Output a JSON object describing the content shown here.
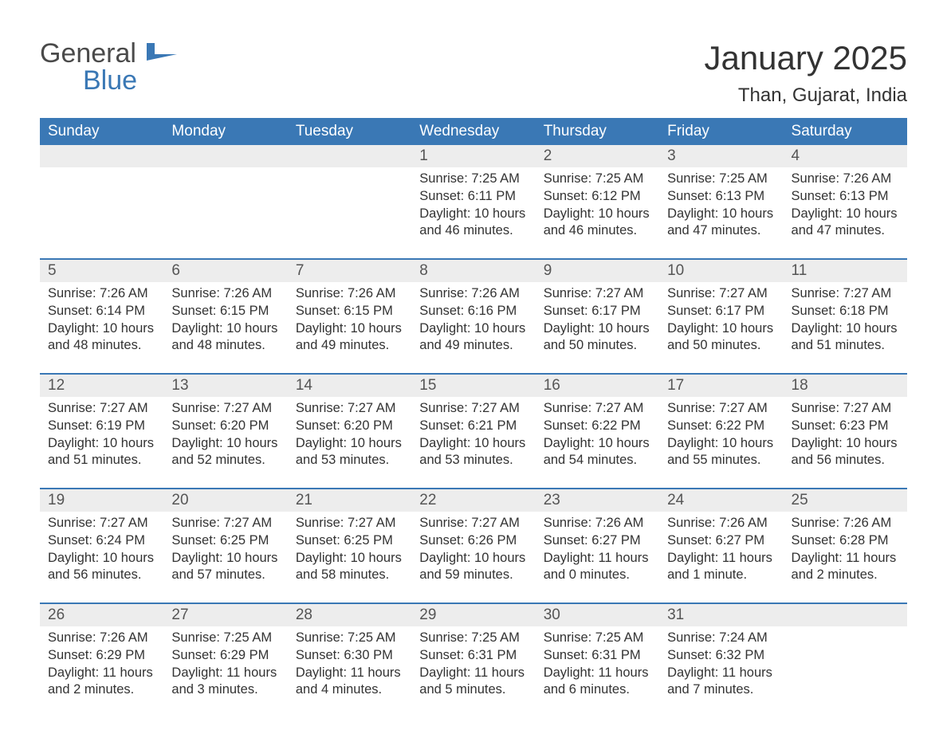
{
  "brand": {
    "general": "General",
    "blue": "Blue",
    "accent": "#3a78b5"
  },
  "title": "January 2025",
  "location": "Than, Gujarat, India",
  "weekdays": [
    "Sunday",
    "Monday",
    "Tuesday",
    "Wednesday",
    "Thursday",
    "Friday",
    "Saturday"
  ],
  "weeks": [
    [
      {
        "n": "",
        "sr": "",
        "ss": "",
        "dl": ""
      },
      {
        "n": "",
        "sr": "",
        "ss": "",
        "dl": ""
      },
      {
        "n": "",
        "sr": "",
        "ss": "",
        "dl": ""
      },
      {
        "n": "1",
        "sr": "Sunrise: 7:25 AM",
        "ss": "Sunset: 6:11 PM",
        "dl": "Daylight: 10 hours and 46 minutes."
      },
      {
        "n": "2",
        "sr": "Sunrise: 7:25 AM",
        "ss": "Sunset: 6:12 PM",
        "dl": "Daylight: 10 hours and 46 minutes."
      },
      {
        "n": "3",
        "sr": "Sunrise: 7:25 AM",
        "ss": "Sunset: 6:13 PM",
        "dl": "Daylight: 10 hours and 47 minutes."
      },
      {
        "n": "4",
        "sr": "Sunrise: 7:26 AM",
        "ss": "Sunset: 6:13 PM",
        "dl": "Daylight: 10 hours and 47 minutes."
      }
    ],
    [
      {
        "n": "5",
        "sr": "Sunrise: 7:26 AM",
        "ss": "Sunset: 6:14 PM",
        "dl": "Daylight: 10 hours and 48 minutes."
      },
      {
        "n": "6",
        "sr": "Sunrise: 7:26 AM",
        "ss": "Sunset: 6:15 PM",
        "dl": "Daylight: 10 hours and 48 minutes."
      },
      {
        "n": "7",
        "sr": "Sunrise: 7:26 AM",
        "ss": "Sunset: 6:15 PM",
        "dl": "Daylight: 10 hours and 49 minutes."
      },
      {
        "n": "8",
        "sr": "Sunrise: 7:26 AM",
        "ss": "Sunset: 6:16 PM",
        "dl": "Daylight: 10 hours and 49 minutes."
      },
      {
        "n": "9",
        "sr": "Sunrise: 7:27 AM",
        "ss": "Sunset: 6:17 PM",
        "dl": "Daylight: 10 hours and 50 minutes."
      },
      {
        "n": "10",
        "sr": "Sunrise: 7:27 AM",
        "ss": "Sunset: 6:17 PM",
        "dl": "Daylight: 10 hours and 50 minutes."
      },
      {
        "n": "11",
        "sr": "Sunrise: 7:27 AM",
        "ss": "Sunset: 6:18 PM",
        "dl": "Daylight: 10 hours and 51 minutes."
      }
    ],
    [
      {
        "n": "12",
        "sr": "Sunrise: 7:27 AM",
        "ss": "Sunset: 6:19 PM",
        "dl": "Daylight: 10 hours and 51 minutes."
      },
      {
        "n": "13",
        "sr": "Sunrise: 7:27 AM",
        "ss": "Sunset: 6:20 PM",
        "dl": "Daylight: 10 hours and 52 minutes."
      },
      {
        "n": "14",
        "sr": "Sunrise: 7:27 AM",
        "ss": "Sunset: 6:20 PM",
        "dl": "Daylight: 10 hours and 53 minutes."
      },
      {
        "n": "15",
        "sr": "Sunrise: 7:27 AM",
        "ss": "Sunset: 6:21 PM",
        "dl": "Daylight: 10 hours and 53 minutes."
      },
      {
        "n": "16",
        "sr": "Sunrise: 7:27 AM",
        "ss": "Sunset: 6:22 PM",
        "dl": "Daylight: 10 hours and 54 minutes."
      },
      {
        "n": "17",
        "sr": "Sunrise: 7:27 AM",
        "ss": "Sunset: 6:22 PM",
        "dl": "Daylight: 10 hours and 55 minutes."
      },
      {
        "n": "18",
        "sr": "Sunrise: 7:27 AM",
        "ss": "Sunset: 6:23 PM",
        "dl": "Daylight: 10 hours and 56 minutes."
      }
    ],
    [
      {
        "n": "19",
        "sr": "Sunrise: 7:27 AM",
        "ss": "Sunset: 6:24 PM",
        "dl": "Daylight: 10 hours and 56 minutes."
      },
      {
        "n": "20",
        "sr": "Sunrise: 7:27 AM",
        "ss": "Sunset: 6:25 PM",
        "dl": "Daylight: 10 hours and 57 minutes."
      },
      {
        "n": "21",
        "sr": "Sunrise: 7:27 AM",
        "ss": "Sunset: 6:25 PM",
        "dl": "Daylight: 10 hours and 58 minutes."
      },
      {
        "n": "22",
        "sr": "Sunrise: 7:27 AM",
        "ss": "Sunset: 6:26 PM",
        "dl": "Daylight: 10 hours and 59 minutes."
      },
      {
        "n": "23",
        "sr": "Sunrise: 7:26 AM",
        "ss": "Sunset: 6:27 PM",
        "dl": "Daylight: 11 hours and 0 minutes."
      },
      {
        "n": "24",
        "sr": "Sunrise: 7:26 AM",
        "ss": "Sunset: 6:27 PM",
        "dl": "Daylight: 11 hours and 1 minute."
      },
      {
        "n": "25",
        "sr": "Sunrise: 7:26 AM",
        "ss": "Sunset: 6:28 PM",
        "dl": "Daylight: 11 hours and 2 minutes."
      }
    ],
    [
      {
        "n": "26",
        "sr": "Sunrise: 7:26 AM",
        "ss": "Sunset: 6:29 PM",
        "dl": "Daylight: 11 hours and 2 minutes."
      },
      {
        "n": "27",
        "sr": "Sunrise: 7:25 AM",
        "ss": "Sunset: 6:29 PM",
        "dl": "Daylight: 11 hours and 3 minutes."
      },
      {
        "n": "28",
        "sr": "Sunrise: 7:25 AM",
        "ss": "Sunset: 6:30 PM",
        "dl": "Daylight: 11 hours and 4 minutes."
      },
      {
        "n": "29",
        "sr": "Sunrise: 7:25 AM",
        "ss": "Sunset: 6:31 PM",
        "dl": "Daylight: 11 hours and 5 minutes."
      },
      {
        "n": "30",
        "sr": "Sunrise: 7:25 AM",
        "ss": "Sunset: 6:31 PM",
        "dl": "Daylight: 11 hours and 6 minutes."
      },
      {
        "n": "31",
        "sr": "Sunrise: 7:24 AM",
        "ss": "Sunset: 6:32 PM",
        "dl": "Daylight: 11 hours and 7 minutes."
      },
      {
        "n": "",
        "sr": "",
        "ss": "",
        "dl": ""
      }
    ]
  ],
  "style": {
    "header_bg": "#3a78b5",
    "header_text": "#ffffff",
    "daynum_bg": "#ededed",
    "body_text": "#333333",
    "week_border": "#3a78b5",
    "title_fontsize": 42,
    "location_fontsize": 24,
    "weekday_fontsize": 19,
    "daynum_fontsize": 19,
    "body_fontsize": 16.5
  }
}
